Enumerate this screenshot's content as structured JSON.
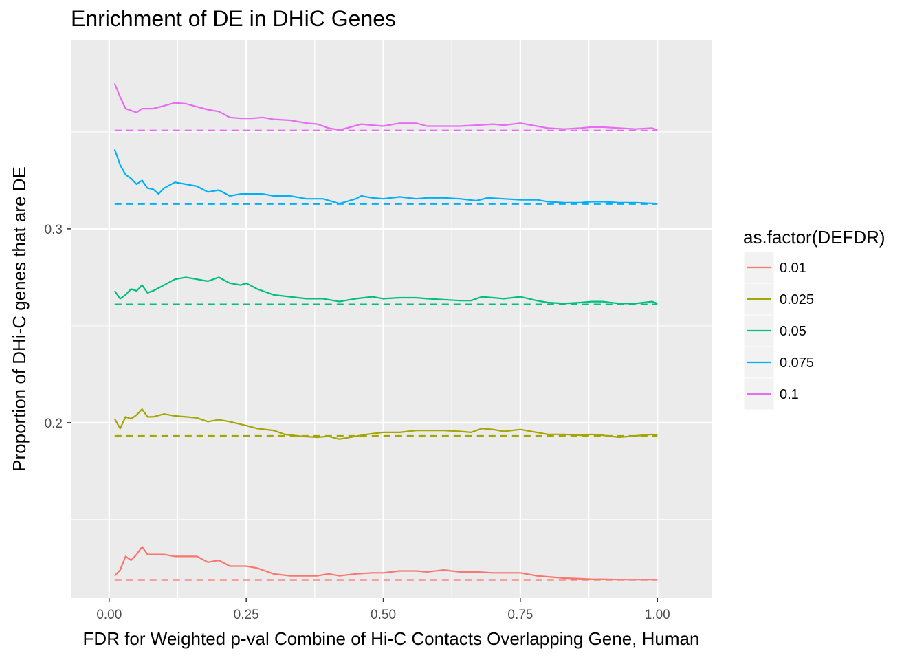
{
  "chart_data": {
    "type": "line",
    "title": "Enrichment of DE in DHiC Genes",
    "xlabel": "FDR for Weighted p-val Combine of Hi-C Contacts Overlapping Gene, Human",
    "ylabel": "Proportion of DHi-C genes that are DE",
    "xlim": [
      -0.07,
      1.1
    ],
    "ylim": [
      0.1095,
      0.3975
    ],
    "x_ticks": [
      {
        "value": 0.0,
        "label": "0.00"
      },
      {
        "value": 0.25,
        "label": "0.25"
      },
      {
        "value": 0.5,
        "label": "0.50"
      },
      {
        "value": 0.75,
        "label": "0.75"
      },
      {
        "value": 1.0,
        "label": "1.00"
      }
    ],
    "y_ticks": [
      {
        "value": 0.2,
        "label": "0.2"
      },
      {
        "value": 0.3,
        "label": "0.3"
      }
    ],
    "grid": true,
    "background": "#ebebeb",
    "legend": {
      "title": "as.factor(DEFDR)",
      "position": "right"
    },
    "series": [
      {
        "name": "0.01",
        "color": "#f8766d",
        "baseline": 0.1189,
        "points": [
          [
            0.01,
            0.121
          ],
          [
            0.02,
            0.124
          ],
          [
            0.03,
            0.131
          ],
          [
            0.04,
            0.129
          ],
          [
            0.05,
            0.132
          ],
          [
            0.06,
            0.136
          ],
          [
            0.07,
            0.132
          ],
          [
            0.08,
            0.132
          ],
          [
            0.1,
            0.132
          ],
          [
            0.12,
            0.131
          ],
          [
            0.14,
            0.131
          ],
          [
            0.16,
            0.131
          ],
          [
            0.18,
            0.128
          ],
          [
            0.2,
            0.129
          ],
          [
            0.22,
            0.126
          ],
          [
            0.25,
            0.126
          ],
          [
            0.27,
            0.125
          ],
          [
            0.3,
            0.122
          ],
          [
            0.33,
            0.121
          ],
          [
            0.36,
            0.121
          ],
          [
            0.38,
            0.121
          ],
          [
            0.4,
            0.122
          ],
          [
            0.42,
            0.121
          ],
          [
            0.45,
            0.122
          ],
          [
            0.48,
            0.1225
          ],
          [
            0.5,
            0.1225
          ],
          [
            0.53,
            0.1235
          ],
          [
            0.56,
            0.1235
          ],
          [
            0.58,
            0.123
          ],
          [
            0.61,
            0.124
          ],
          [
            0.64,
            0.123
          ],
          [
            0.67,
            0.123
          ],
          [
            0.7,
            0.1225
          ],
          [
            0.73,
            0.1225
          ],
          [
            0.75,
            0.1225
          ],
          [
            0.78,
            0.121
          ],
          [
            0.8,
            0.1205
          ],
          [
            0.83,
            0.1198
          ],
          [
            0.86,
            0.1195
          ],
          [
            0.88,
            0.1192
          ],
          [
            0.9,
            0.1192
          ],
          [
            0.93,
            0.119
          ],
          [
            0.96,
            0.119
          ],
          [
            1.0,
            0.119
          ]
        ]
      },
      {
        "name": "0.025",
        "color": "#a3a500",
        "baseline": 0.1932,
        "points": [
          [
            0.01,
            0.202
          ],
          [
            0.02,
            0.197
          ],
          [
            0.03,
            0.203
          ],
          [
            0.04,
            0.202
          ],
          [
            0.05,
            0.204
          ],
          [
            0.06,
            0.207
          ],
          [
            0.07,
            0.203
          ],
          [
            0.08,
            0.203
          ],
          [
            0.1,
            0.2045
          ],
          [
            0.12,
            0.2035
          ],
          [
            0.14,
            0.203
          ],
          [
            0.16,
            0.2025
          ],
          [
            0.18,
            0.2005
          ],
          [
            0.2,
            0.2015
          ],
          [
            0.22,
            0.2005
          ],
          [
            0.25,
            0.1985
          ],
          [
            0.27,
            0.197
          ],
          [
            0.3,
            0.196
          ],
          [
            0.32,
            0.194
          ],
          [
            0.35,
            0.193
          ],
          [
            0.38,
            0.1925
          ],
          [
            0.4,
            0.193
          ],
          [
            0.42,
            0.1915
          ],
          [
            0.45,
            0.193
          ],
          [
            0.47,
            0.194
          ],
          [
            0.5,
            0.195
          ],
          [
            0.53,
            0.195
          ],
          [
            0.56,
            0.196
          ],
          [
            0.58,
            0.196
          ],
          [
            0.61,
            0.196
          ],
          [
            0.64,
            0.1955
          ],
          [
            0.66,
            0.195
          ],
          [
            0.68,
            0.197
          ],
          [
            0.7,
            0.1965
          ],
          [
            0.72,
            0.1955
          ],
          [
            0.75,
            0.1965
          ],
          [
            0.78,
            0.195
          ],
          [
            0.8,
            0.194
          ],
          [
            0.83,
            0.194
          ],
          [
            0.86,
            0.1935
          ],
          [
            0.88,
            0.194
          ],
          [
            0.9,
            0.1935
          ],
          [
            0.93,
            0.1925
          ],
          [
            0.96,
            0.1932
          ],
          [
            0.99,
            0.194
          ],
          [
            1.0,
            0.1935
          ]
        ]
      },
      {
        "name": "0.05",
        "color": "#00bf7d",
        "baseline": 0.2611,
        "points": [
          [
            0.01,
            0.268
          ],
          [
            0.02,
            0.264
          ],
          [
            0.03,
            0.266
          ],
          [
            0.04,
            0.269
          ],
          [
            0.05,
            0.268
          ],
          [
            0.06,
            0.271
          ],
          [
            0.07,
            0.267
          ],
          [
            0.08,
            0.268
          ],
          [
            0.1,
            0.271
          ],
          [
            0.12,
            0.274
          ],
          [
            0.14,
            0.275
          ],
          [
            0.16,
            0.274
          ],
          [
            0.18,
            0.273
          ],
          [
            0.2,
            0.275
          ],
          [
            0.22,
            0.272
          ],
          [
            0.24,
            0.271
          ],
          [
            0.25,
            0.272
          ],
          [
            0.27,
            0.269
          ],
          [
            0.3,
            0.266
          ],
          [
            0.33,
            0.265
          ],
          [
            0.36,
            0.264
          ],
          [
            0.39,
            0.264
          ],
          [
            0.42,
            0.2625
          ],
          [
            0.45,
            0.264
          ],
          [
            0.48,
            0.265
          ],
          [
            0.5,
            0.264
          ],
          [
            0.53,
            0.2645
          ],
          [
            0.56,
            0.2645
          ],
          [
            0.58,
            0.264
          ],
          [
            0.61,
            0.2635
          ],
          [
            0.64,
            0.263
          ],
          [
            0.66,
            0.263
          ],
          [
            0.68,
            0.265
          ],
          [
            0.7,
            0.2645
          ],
          [
            0.72,
            0.264
          ],
          [
            0.75,
            0.265
          ],
          [
            0.78,
            0.263
          ],
          [
            0.8,
            0.262
          ],
          [
            0.83,
            0.2615
          ],
          [
            0.86,
            0.262
          ],
          [
            0.88,
            0.2625
          ],
          [
            0.9,
            0.2625
          ],
          [
            0.93,
            0.2615
          ],
          [
            0.96,
            0.2615
          ],
          [
            0.99,
            0.2625
          ],
          [
            1.0,
            0.2615
          ]
        ]
      },
      {
        "name": "0.075",
        "color": "#00b0f6",
        "baseline": 0.3128,
        "points": [
          [
            0.01,
            0.341
          ],
          [
            0.02,
            0.333
          ],
          [
            0.03,
            0.328
          ],
          [
            0.04,
            0.326
          ],
          [
            0.05,
            0.323
          ],
          [
            0.06,
            0.325
          ],
          [
            0.07,
            0.321
          ],
          [
            0.08,
            0.3205
          ],
          [
            0.09,
            0.318
          ],
          [
            0.1,
            0.321
          ],
          [
            0.12,
            0.324
          ],
          [
            0.14,
            0.323
          ],
          [
            0.16,
            0.322
          ],
          [
            0.18,
            0.319
          ],
          [
            0.2,
            0.32
          ],
          [
            0.22,
            0.317
          ],
          [
            0.24,
            0.318
          ],
          [
            0.26,
            0.318
          ],
          [
            0.28,
            0.318
          ],
          [
            0.3,
            0.317
          ],
          [
            0.33,
            0.317
          ],
          [
            0.36,
            0.3155
          ],
          [
            0.39,
            0.3155
          ],
          [
            0.42,
            0.313
          ],
          [
            0.45,
            0.3155
          ],
          [
            0.46,
            0.317
          ],
          [
            0.48,
            0.316
          ],
          [
            0.5,
            0.3155
          ],
          [
            0.53,
            0.3165
          ],
          [
            0.56,
            0.3155
          ],
          [
            0.58,
            0.316
          ],
          [
            0.61,
            0.316
          ],
          [
            0.64,
            0.3155
          ],
          [
            0.67,
            0.3145
          ],
          [
            0.69,
            0.316
          ],
          [
            0.72,
            0.3155
          ],
          [
            0.75,
            0.315
          ],
          [
            0.78,
            0.315
          ],
          [
            0.8,
            0.314
          ],
          [
            0.83,
            0.3135
          ],
          [
            0.86,
            0.3135
          ],
          [
            0.88,
            0.314
          ],
          [
            0.9,
            0.314
          ],
          [
            0.93,
            0.3135
          ],
          [
            0.96,
            0.3135
          ],
          [
            1.0,
            0.313
          ]
        ]
      },
      {
        "name": "0.1",
        "color": "#e76bf3",
        "baseline": 0.3508,
        "points": [
          [
            0.01,
            0.375
          ],
          [
            0.02,
            0.368
          ],
          [
            0.03,
            0.362
          ],
          [
            0.05,
            0.36
          ],
          [
            0.06,
            0.362
          ],
          [
            0.08,
            0.362
          ],
          [
            0.1,
            0.3635
          ],
          [
            0.12,
            0.365
          ],
          [
            0.14,
            0.3645
          ],
          [
            0.16,
            0.363
          ],
          [
            0.18,
            0.3615
          ],
          [
            0.2,
            0.3605
          ],
          [
            0.22,
            0.3575
          ],
          [
            0.24,
            0.357
          ],
          [
            0.26,
            0.357
          ],
          [
            0.28,
            0.3575
          ],
          [
            0.3,
            0.3565
          ],
          [
            0.33,
            0.356
          ],
          [
            0.36,
            0.3545
          ],
          [
            0.38,
            0.354
          ],
          [
            0.4,
            0.352
          ],
          [
            0.42,
            0.351
          ],
          [
            0.44,
            0.3525
          ],
          [
            0.46,
            0.354
          ],
          [
            0.48,
            0.3535
          ],
          [
            0.5,
            0.353
          ],
          [
            0.53,
            0.3545
          ],
          [
            0.56,
            0.3545
          ],
          [
            0.58,
            0.353
          ],
          [
            0.61,
            0.353
          ],
          [
            0.64,
            0.353
          ],
          [
            0.67,
            0.3535
          ],
          [
            0.7,
            0.354
          ],
          [
            0.72,
            0.3535
          ],
          [
            0.75,
            0.3545
          ],
          [
            0.78,
            0.353
          ],
          [
            0.8,
            0.352
          ],
          [
            0.83,
            0.3515
          ],
          [
            0.86,
            0.352
          ],
          [
            0.88,
            0.3525
          ],
          [
            0.9,
            0.3525
          ],
          [
            0.93,
            0.352
          ],
          [
            0.96,
            0.3515
          ],
          [
            0.99,
            0.352
          ],
          [
            1.0,
            0.351
          ]
        ]
      }
    ]
  }
}
